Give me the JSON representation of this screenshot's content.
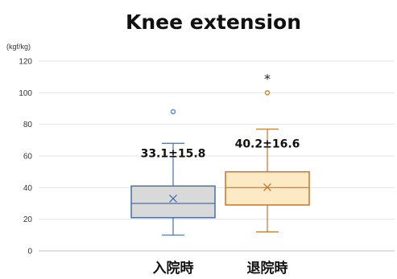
{
  "chart_data": {
    "type": "box",
    "title": "Knee extension",
    "unit_label": "(kgf/kg)",
    "ylim": [
      0,
      120
    ],
    "y_ticks": [
      "0",
      "20",
      "40",
      "60",
      "80",
      "100",
      "120"
    ],
    "grid": true,
    "categories": [
      "入院時",
      "退院時"
    ],
    "series": [
      {
        "min": 10,
        "q1": 21,
        "median": 30,
        "q3": 41,
        "max": 68,
        "mean": 33.1,
        "outliers": [
          88
        ],
        "label": "33.1±15.8",
        "box_fill": "#d9d9d9",
        "stroke": "#4a6fa5",
        "outlier_color": "#5b8bd0"
      },
      {
        "min": 12,
        "q1": 29,
        "median": 40,
        "q3": 50,
        "max": 77,
        "mean": 40.2,
        "outliers": [
          100
        ],
        "label": "40.2±16.6",
        "box_fill": "#fde9c4",
        "stroke": "#c8742a",
        "outlier_color": "#d08a2e",
        "significance": "*"
      }
    ]
  }
}
